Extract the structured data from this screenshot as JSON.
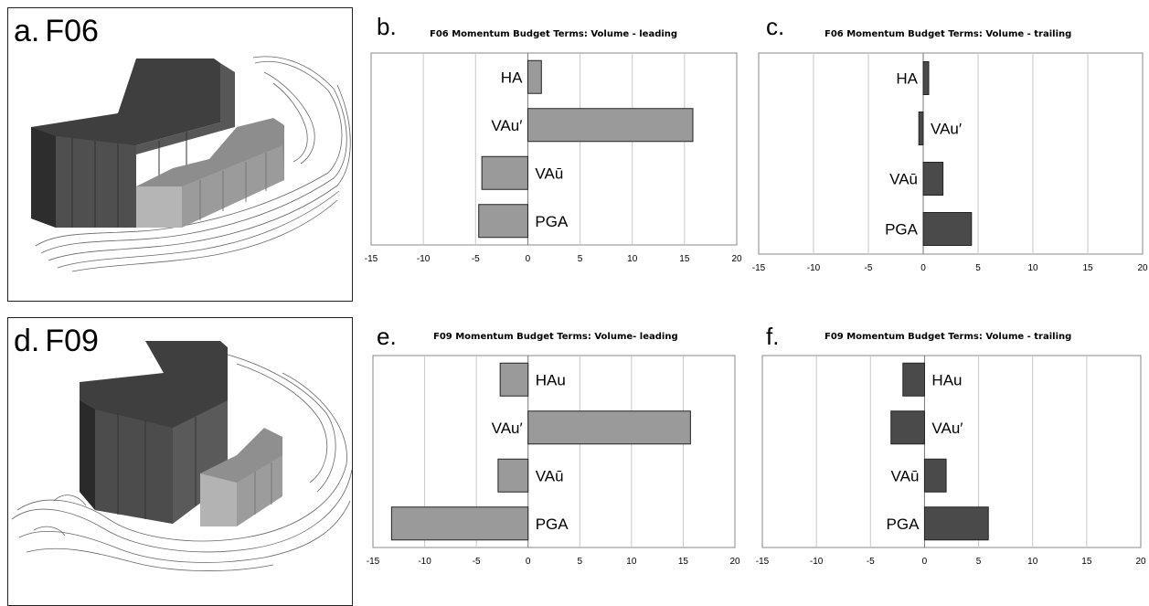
{
  "panels": {
    "a": {
      "letter": "a.",
      "text": "F06"
    },
    "d": {
      "letter": "d.",
      "text": "F09"
    },
    "b": {
      "letter": "b."
    },
    "c": {
      "letter": "c."
    },
    "e": {
      "letter": "e."
    },
    "f": {
      "letter": "f."
    }
  },
  "colors": {
    "light_bar": "#9a9a9a",
    "dark_bar": "#4a4a4a",
    "grid": "#c8c8c8",
    "dark_block": "#4d4d4d",
    "light_block": "#a3a3a3"
  },
  "chart_data": [
    {
      "id": "b",
      "type": "bar",
      "orientation": "horizontal",
      "title": "F06 Momentum Budget Terms: Volume - leading",
      "categories": [
        "HA",
        "VAu′",
        "VAū",
        "PGA"
      ],
      "values": [
        1.3,
        15.8,
        -4.4,
        -4.7
      ],
      "xlim": [
        -15,
        20
      ],
      "xticks": [
        -15,
        -10,
        -5,
        0,
        5,
        10,
        15,
        20
      ],
      "grid": true,
      "color": "#9a9a9a"
    },
    {
      "id": "c",
      "type": "bar",
      "orientation": "horizontal",
      "title": "F06 Momentum Budget Terms: Volume - trailing",
      "categories": [
        "HA",
        "VAu′",
        "VAū",
        "PGA"
      ],
      "values": [
        0.5,
        -0.4,
        1.8,
        4.4
      ],
      "xlim": [
        -15,
        20
      ],
      "xticks": [
        -15,
        -10,
        -5,
        0,
        5,
        10,
        15,
        20
      ],
      "grid": true,
      "color": "#4a4a4a"
    },
    {
      "id": "e",
      "type": "bar",
      "orientation": "horizontal",
      "title": "F09 Momentum Budget Terms: Volume- leading",
      "categories": [
        "HAu",
        "VAu′",
        "VAū",
        "PGA"
      ],
      "values": [
        -2.7,
        15.7,
        -2.9,
        -13.2
      ],
      "xlim": [
        -15,
        20
      ],
      "xticks": [
        -15,
        -10,
        -5,
        0,
        5,
        10,
        15,
        20
      ],
      "grid": true,
      "color": "#9a9a9a"
    },
    {
      "id": "f",
      "type": "bar",
      "orientation": "horizontal",
      "title": "F09 Momentum Budget Terms: Volume - trailing",
      "categories": [
        "HAu",
        "VAu′",
        "VAū",
        "PGA"
      ],
      "values": [
        -2.0,
        -3.1,
        2.0,
        5.9
      ],
      "xlim": [
        -15,
        20
      ],
      "xticks": [
        -15,
        -10,
        -5,
        0,
        5,
        10,
        15,
        20
      ],
      "grid": true,
      "color": "#4a4a4a"
    }
  ]
}
